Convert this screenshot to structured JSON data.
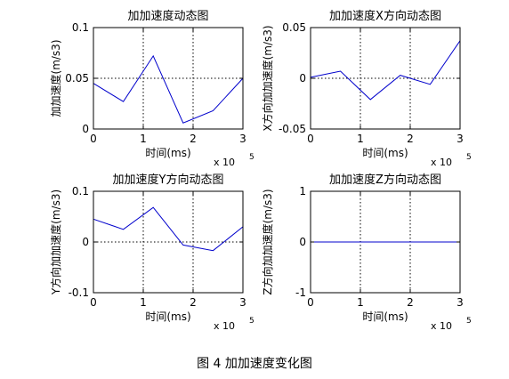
{
  "caption": "图 4  加加速度变化图",
  "colors": {
    "line": "#0000cc",
    "axes": "#000000",
    "grid": "#000000",
    "background": "#ffffff"
  },
  "chart_data": [
    {
      "type": "line",
      "title": "加加速度动态图",
      "xlabel": "时间(ms)",
      "ylabel": "加加速度(m/s3)",
      "x_exponent_label": "x 10",
      "x_exponent_power": "5",
      "xlim": [
        0,
        300000
      ],
      "ylim": [
        0,
        0.1
      ],
      "grid": "dotted",
      "xticks": [
        0,
        100000,
        200000,
        300000
      ],
      "xtick_labels": [
        "0",
        "1",
        "2",
        "3"
      ],
      "yticks": [
        0,
        0.05,
        0.1
      ],
      "ytick_labels": [
        "0",
        "0.05",
        "0.1"
      ],
      "x": [
        0,
        60000,
        120000,
        180000,
        240000,
        300000
      ],
      "y": [
        0.045,
        0.027,
        0.072,
        0.006,
        0.018,
        0.05
      ]
    },
    {
      "type": "line",
      "title": "加加速度X方向动态图",
      "xlabel": "时间(ms)",
      "ylabel": "X方向加加速度(m/s3)",
      "x_exponent_label": "x 10",
      "x_exponent_power": "5",
      "xlim": [
        0,
        300000
      ],
      "ylim": [
        -0.05,
        0.05
      ],
      "grid": "dotted",
      "xticks": [
        0,
        100000,
        200000,
        300000
      ],
      "xtick_labels": [
        "0",
        "1",
        "2",
        "3"
      ],
      "yticks": [
        -0.05,
        0,
        0.05
      ],
      "ytick_labels": [
        "-0.05",
        "0",
        "0.05"
      ],
      "x": [
        0,
        60000,
        120000,
        180000,
        240000,
        300000
      ],
      "y": [
        0.001,
        0.007,
        -0.021,
        0.003,
        -0.006,
        0.037
      ]
    },
    {
      "type": "line",
      "title": "加加速度Y方向动态图",
      "xlabel": "时间(ms)",
      "ylabel": "Y方向加加速度(m/s3)",
      "x_exponent_label": "x 10",
      "x_exponent_power": "5",
      "xlim": [
        0,
        300000
      ],
      "ylim": [
        -0.1,
        0.1
      ],
      "grid": "dotted",
      "xticks": [
        0,
        100000,
        200000,
        300000
      ],
      "xtick_labels": [
        "0",
        "1",
        "2",
        "3"
      ],
      "yticks": [
        -0.1,
        0,
        0.1
      ],
      "ytick_labels": [
        "-0.1",
        "0",
        "0.1"
      ],
      "x": [
        0,
        60000,
        120000,
        180000,
        240000,
        300000
      ],
      "y": [
        0.045,
        0.025,
        0.068,
        -0.006,
        -0.017,
        0.03
      ]
    },
    {
      "type": "line",
      "title": "加加速度Z方向动态图",
      "xlabel": "时间(ms)",
      "ylabel": "Z方向加加速度(m/s3)",
      "x_exponent_label": "x 10",
      "x_exponent_power": "5",
      "xlim": [
        0,
        300000
      ],
      "ylim": [
        -1,
        1
      ],
      "grid": "dotted",
      "xticks": [
        0,
        100000,
        200000,
        300000
      ],
      "xtick_labels": [
        "0",
        "1",
        "2",
        "3"
      ],
      "yticks": [
        -1,
        0,
        1
      ],
      "ytick_labels": [
        "-1",
        "0",
        "1"
      ],
      "x": [
        0,
        60000,
        120000,
        180000,
        240000,
        300000
      ],
      "y": [
        0,
        0,
        0,
        0,
        0,
        0
      ]
    }
  ]
}
